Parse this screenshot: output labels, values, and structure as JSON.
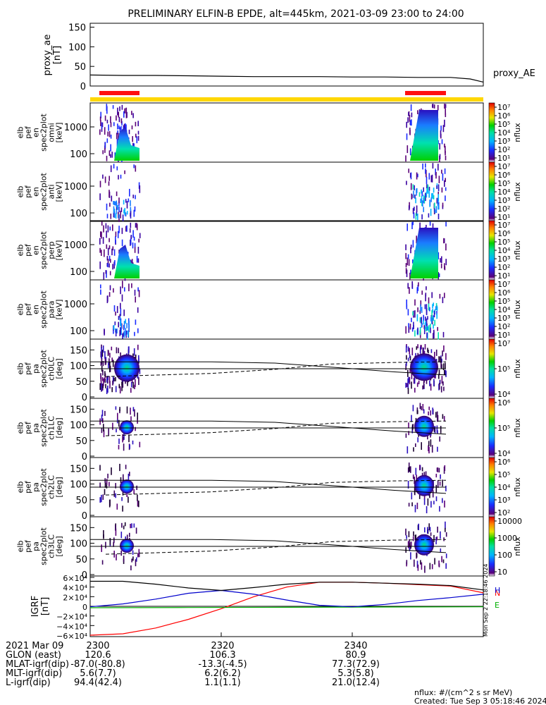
{
  "title": "PRELIMINARY ELFIN-B EPDE, alt=445km, 2021-03-09 23:00 to 24:00",
  "colors": {
    "sci_zone_bar": "#ff1010",
    "yellow_bar": "#ffd700",
    "grf_n": "#ff0000",
    "grf_e": "#00b000",
    "grf_h": "#0000cc",
    "grf_total": "#000000"
  },
  "panels": {
    "proxy_ae": {
      "ylabel_lines": [
        "proxy_ae",
        "[nT]"
      ],
      "yticks": [
        "150",
        "100",
        "50",
        "0"
      ],
      "series_label": "proxy_AE"
    },
    "energy": [
      {
        "ylabel_lines": [
          "elb",
          "pef",
          "en",
          "spec2plot",
          "omni",
          "[keV]"
        ],
        "yticks": [
          "1000",
          "100"
        ]
      },
      {
        "ylabel_lines": [
          "elb",
          "pef",
          "en",
          "spec2plot",
          "anti",
          "[keV]"
        ],
        "yticks": [
          "1000",
          "100"
        ]
      },
      {
        "ylabel_lines": [
          "elb",
          "pef",
          "en",
          "spec2plot",
          "perp",
          "[keV]"
        ],
        "yticks": [
          "1000",
          "100"
        ]
      },
      {
        "ylabel_lines": [
          "elb",
          "pef",
          "en",
          "spec2plot",
          "para",
          "[keV]"
        ],
        "yticks": [
          "1000",
          "100"
        ]
      }
    ],
    "pitch": [
      {
        "ylabel_lines": [
          "elb",
          "pef",
          "pa",
          "spec2plot",
          "ch0LC",
          "[deg]"
        ],
        "yticks": [
          "150",
          "100",
          "50",
          "0"
        ]
      },
      {
        "ylabel_lines": [
          "elb",
          "pef",
          "pa",
          "spec2plot",
          "ch1LC",
          "[deg]"
        ],
        "yticks": [
          "150",
          "100",
          "50",
          "0"
        ]
      },
      {
        "ylabel_lines": [
          "elb",
          "pef",
          "pa",
          "spec2plot",
          "ch2LC",
          "[deg]"
        ],
        "yticks": [
          "150",
          "100",
          "50",
          "0"
        ]
      },
      {
        "ylabel_lines": [
          "elb",
          "pef",
          "pa",
          "spec2plot",
          "ch3LC",
          "[deg]"
        ],
        "yticks": [
          "150",
          "100",
          "50",
          "0"
        ]
      }
    ],
    "igrf": {
      "ylabel_lines": [
        "IGRF",
        "[nT]"
      ],
      "yticks": [
        "6×10⁴",
        "4×10⁴",
        "2×10⁴",
        "0",
        "−2×10⁴",
        "−4×10⁴",
        "−6×10⁴"
      ],
      "legend": [
        "N",
        "E",
        "H"
      ],
      "side_text": "Mon Sep  2 22:18:46 2024"
    }
  },
  "colorbars": [
    {
      "label": "nflux",
      "ticks": [
        "10⁷",
        "10⁶",
        "10⁵",
        "10⁴",
        "10³",
        "10²",
        "10¹"
      ]
    },
    {
      "label": "nflux",
      "ticks": [
        "10⁷",
        "10⁶",
        "10⁵",
        "10⁴",
        "10³",
        "10²",
        "10¹"
      ]
    },
    {
      "label": "nflux",
      "ticks": [
        "10⁷",
        "10⁶",
        "10⁵",
        "10⁴",
        "10³",
        "10²",
        "10¹"
      ]
    },
    {
      "label": "nflux",
      "ticks": [
        "10⁷",
        "10⁶",
        "10⁵",
        "10⁴",
        "10³",
        "10²",
        "10¹"
      ]
    },
    {
      "label": "nflux",
      "ticks": [
        "10⁷",
        "10⁵",
        "10⁴"
      ]
    },
    {
      "label": "nflux",
      "ticks": [
        "10⁶",
        "10⁵",
        "10⁴"
      ]
    },
    {
      "label": "nflux",
      "ticks": [
        "10⁶",
        "10⁵",
        "10⁴",
        "10³",
        "10²"
      ]
    },
    {
      "label": "nflux",
      "ticks": [
        "10000",
        "1000",
        "100",
        "10"
      ]
    }
  ],
  "footer": {
    "rows": [
      {
        "label": "2021 Mar 09",
        "values": [
          "2300",
          "2320",
          "2340"
        ]
      },
      {
        "label": "GLON (east)",
        "values": [
          "120.6",
          "106.3",
          "80.9"
        ]
      },
      {
        "label": "MLAT-igrf(dip)",
        "values": [
          "-87.0(-80.8)",
          "-13.3(-4.5)",
          "77.3(72.9)"
        ]
      },
      {
        "label": "MLT-igrf(dip)",
        "values": [
          "5.6(7.7)",
          "6.2(6.2)",
          "5.3(5.8)"
        ]
      },
      {
        "label": "L-igrf(dip)",
        "values": [
          "94.4(42.4)",
          "1.1(1.1)",
          "21.0(12.4)"
        ]
      }
    ],
    "units_note": "nflux: #/(cm^2 s sr MeV)",
    "created": "Created: Tue Sep  3 05:18:46 2024"
  },
  "chart_data": [
    {
      "type": "line",
      "name_panel": "proxy_ae",
      "xlabel": "",
      "ylabel": "proxy_ae [nT]",
      "ylim": [
        0,
        160
      ],
      "x": [
        0,
        5,
        10,
        15,
        20,
        25,
        30,
        35,
        40,
        45,
        50,
        55,
        58,
        60
      ],
      "values": [
        28,
        27,
        27,
        26,
        25,
        24,
        24,
        24,
        23,
        23,
        22,
        22,
        18,
        10
      ]
    },
    {
      "type": "line",
      "name_panel": "igrf",
      "ylabel": "IGRF [nT]",
      "ylim": [
        -60000,
        60000
      ],
      "series": [
        {
          "name": "N",
          "color": "#ff0000",
          "x": [
            0,
            5,
            10,
            15,
            20,
            25,
            30,
            35,
            40,
            45,
            50,
            55,
            60
          ],
          "values": [
            -60000,
            -57000,
            -45000,
            -27000,
            -5000,
            20000,
            40000,
            50000,
            50000,
            48000,
            45000,
            42000,
            28000
          ]
        },
        {
          "name": "E",
          "color": "#00b000",
          "x": [
            0,
            15,
            30,
            45,
            60
          ],
          "values": [
            -3000,
            -2500,
            -2000,
            -1500,
            -1000
          ]
        },
        {
          "name": "H",
          "color": "#0000cc",
          "x": [
            0,
            5,
            10,
            15,
            20,
            25,
            30,
            35,
            40,
            45,
            50,
            55,
            60
          ],
          "values": [
            -1000,
            5000,
            15000,
            27000,
            33000,
            25000,
            13000,
            2000,
            -1000,
            4000,
            12000,
            18000,
            25000
          ]
        },
        {
          "name": "total",
          "color": "#000000",
          "x": [
            0,
            5,
            10,
            15,
            20,
            25,
            30,
            35,
            40,
            45,
            50,
            55,
            60
          ],
          "values": [
            52000,
            52000,
            46000,
            38000,
            33000,
            39000,
            46000,
            50000,
            50000,
            48000,
            46000,
            43000,
            34000
          ]
        }
      ]
    }
  ]
}
